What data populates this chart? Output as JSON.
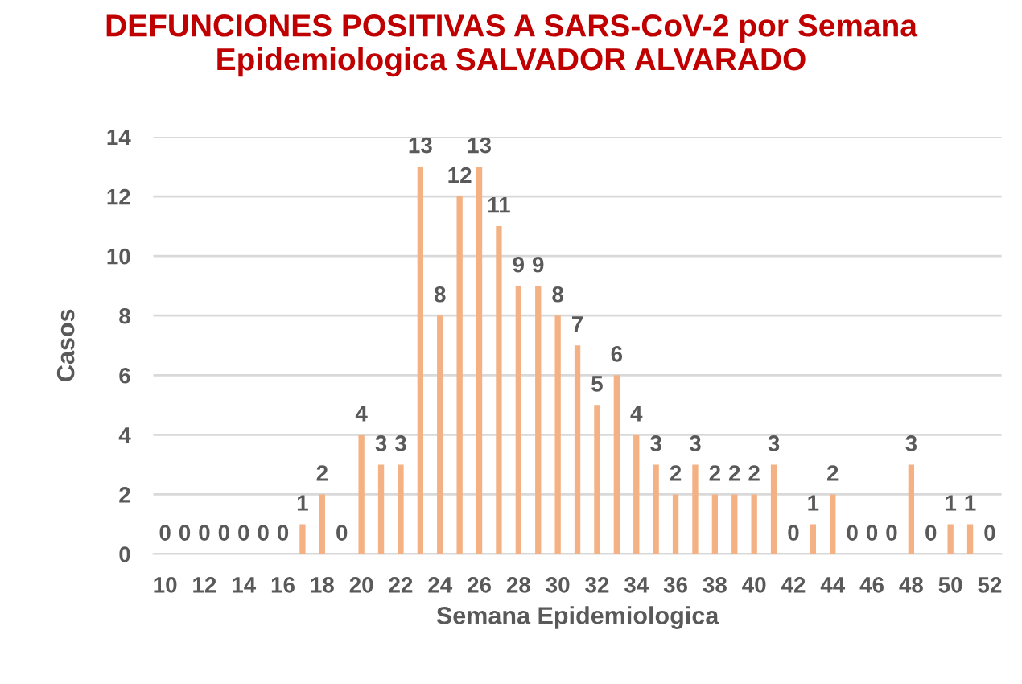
{
  "chart_data": {
    "type": "bar",
    "title": "DEFUNCIONES POSITIVAS A SARS-CoV-2 por Semana Epidemiologica SALVADOR ALVARADO",
    "xlabel": "Semana Epidemiologica",
    "ylabel": "Casos",
    "categories": [
      "10",
      null,
      "12",
      null,
      "14",
      null,
      "16",
      null,
      "18",
      null,
      "20",
      null,
      "22",
      null,
      "24",
      null,
      "26",
      null,
      "28",
      null,
      "30",
      null,
      "32",
      null,
      "34",
      null,
      "36",
      null,
      "38",
      null,
      "40",
      null,
      "42",
      null,
      "44",
      null,
      "46",
      null,
      "48",
      null,
      "50",
      null,
      "52"
    ],
    "values": [
      0,
      0,
      0,
      0,
      0,
      0,
      0,
      1,
      2,
      0,
      4,
      3,
      3,
      13,
      8,
      12,
      13,
      11,
      9,
      9,
      8,
      7,
      5,
      6,
      4,
      3,
      2,
      3,
      2,
      2,
      2,
      3,
      0,
      1,
      2,
      0,
      0,
      0,
      3,
      0,
      1,
      1,
      0
    ],
    "color": "#f4b183",
    "ylim": [
      0,
      14
    ],
    "yticks": [
      0,
      2,
      4,
      6,
      8,
      10,
      12,
      14
    ],
    "grid": "y",
    "data_labels": true,
    "legend": false
  }
}
